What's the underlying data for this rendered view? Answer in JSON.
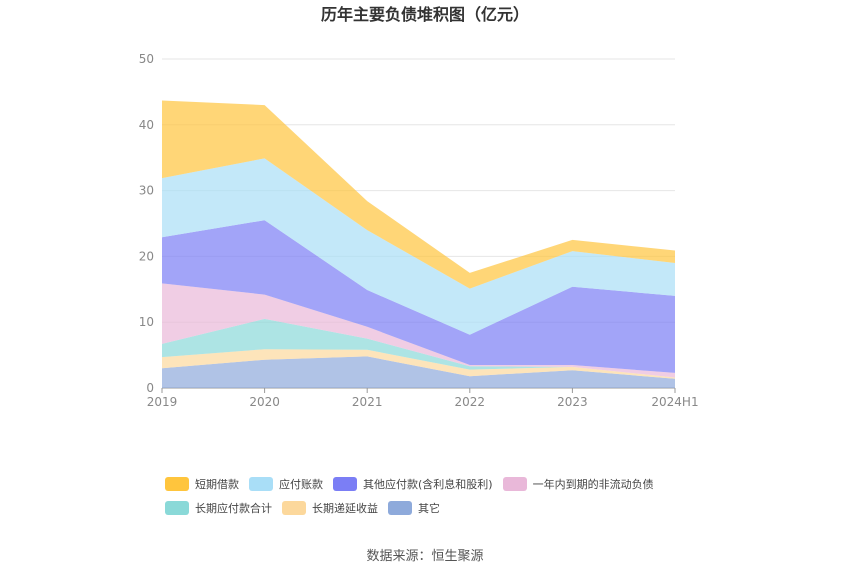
{
  "chart_data": {
    "type": "area",
    "stacked": true,
    "title": "历年主要负债堆积图（亿元）",
    "xlabel": "",
    "ylabel": "",
    "categories": [
      "2019",
      "2020",
      "2021",
      "2022",
      "2023",
      "2024H1"
    ],
    "ylim": [
      0,
      50
    ],
    "yticks": [
      0,
      10,
      20,
      30,
      40,
      50
    ],
    "grid": true,
    "legend_position": "bottom",
    "series": [
      {
        "name": "其它",
        "color": "#8eaadb",
        "values": [
          3.0,
          4.3,
          4.8,
          1.8,
          2.7,
          1.4
        ]
      },
      {
        "name": "长期递延收益",
        "color": "#fcd89c",
        "values": [
          1.7,
          1.6,
          1.0,
          1.0,
          0.5,
          0.2
        ]
      },
      {
        "name": "长期应付款合计",
        "color": "#8ad9d8",
        "values": [
          2.0,
          4.6,
          1.7,
          0.5,
          0.0,
          0.0
        ]
      },
      {
        "name": "一年内到期的非流动负债",
        "color": "#e9b8d9",
        "values": [
          9.2,
          3.7,
          1.8,
          0.2,
          0.3,
          0.7
        ]
      },
      {
        "name": "其他应付款(含利息和股利)",
        "color": "#7b7ef5",
        "values": [
          7.0,
          11.3,
          5.6,
          4.6,
          11.9,
          11.7
        ]
      },
      {
        "name": "应付账款",
        "color": "#a9def7",
        "values": [
          9.0,
          9.4,
          9.1,
          7.0,
          5.4,
          5.0
        ]
      },
      {
        "name": "短期借款",
        "color": "#ffc53d",
        "values": [
          11.8,
          8.1,
          4.4,
          2.4,
          1.7,
          1.9
        ]
      }
    ]
  },
  "legend_order": [
    [
      "短期借款",
      "应付账款",
      "其他应付款(含利息和股利)",
      "一年内到期的非流动负债"
    ],
    [
      "长期应付款合计",
      "长期递延收益",
      "其它"
    ]
  ],
  "source_text": "数据来源：恒生聚源"
}
